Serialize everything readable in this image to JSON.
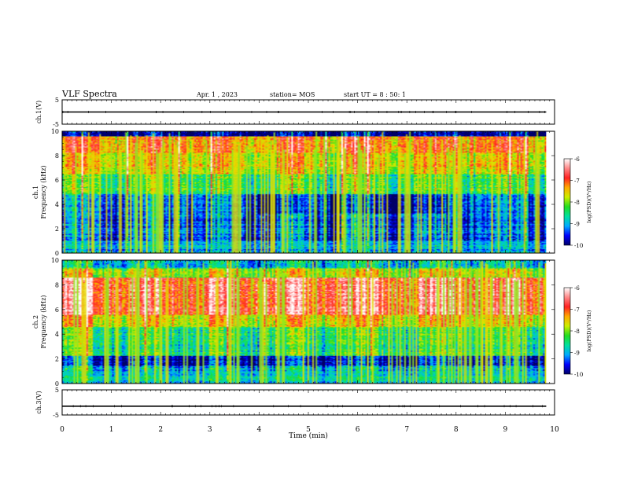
{
  "header": {
    "title": "VLF Spectra",
    "date": "Apr. 1 , 2023",
    "station": "station= MOS",
    "start": "start UT = 8 : 50: 1"
  },
  "chart_data": [
    {
      "type": "line",
      "panel": "ch1-waveform",
      "ylabel": "ch.1(V)",
      "ylim": [
        -5,
        5
      ],
      "yticks": [
        "5",
        "-5"
      ],
      "series": [
        {
          "values": [
            0,
            0,
            0,
            0,
            0,
            0,
            0,
            0,
            0,
            0,
            0
          ]
        }
      ]
    },
    {
      "type": "heatmap",
      "panel": "ch1-spectrogram",
      "ylabel": "ch.1 Frequency (kHz)",
      "ylim": [
        0,
        10
      ],
      "yticks": [
        "0",
        "2",
        "4",
        "6",
        "8",
        "10"
      ],
      "colorbar": {
        "label": "log(PSD)(V²/Hz)",
        "ticks": [
          "-6",
          "-7",
          "-8",
          "-9",
          "-10"
        ],
        "range": [
          -10,
          -6
        ]
      }
    },
    {
      "type": "heatmap",
      "panel": "ch2-spectrogram",
      "ylabel": "ch.2 Frequency (kHz)",
      "ylim": [
        0,
        10
      ],
      "yticks": [
        "0",
        "2",
        "4",
        "6",
        "8",
        "10"
      ],
      "colorbar": {
        "label": "log(PSD)(V²/Hz)",
        "ticks": [
          "-6",
          "-7",
          "-8",
          "-9",
          "-10"
        ],
        "range": [
          -10,
          -6
        ]
      }
    },
    {
      "type": "line",
      "panel": "ch3-waveform",
      "ylabel": "ch.3(V)",
      "ylim": [
        -5,
        5
      ],
      "yticks": [
        "5",
        "-5"
      ],
      "series": [
        {
          "values": [
            -1.5,
            -1.5,
            -1.5,
            -1.5,
            -1.5,
            -1.5,
            -1.5,
            -1.5,
            -1.5,
            -1.5,
            -1.5
          ]
        }
      ]
    }
  ],
  "x_axis": {
    "label": "Time (min)",
    "range": [
      0,
      10
    ],
    "ticks": [
      "0",
      "1",
      "2",
      "3",
      "4",
      "5",
      "6",
      "7",
      "8",
      "9",
      "10"
    ],
    "data_end": 9.83
  },
  "colors": {
    "colormap": [
      "#000066",
      "#0000ff",
      "#00aaff",
      "#00e0a0",
      "#22dd22",
      "#ccee00",
      "#ffaa00",
      "#ff2222",
      "#ff8888",
      "#ffffff"
    ]
  }
}
